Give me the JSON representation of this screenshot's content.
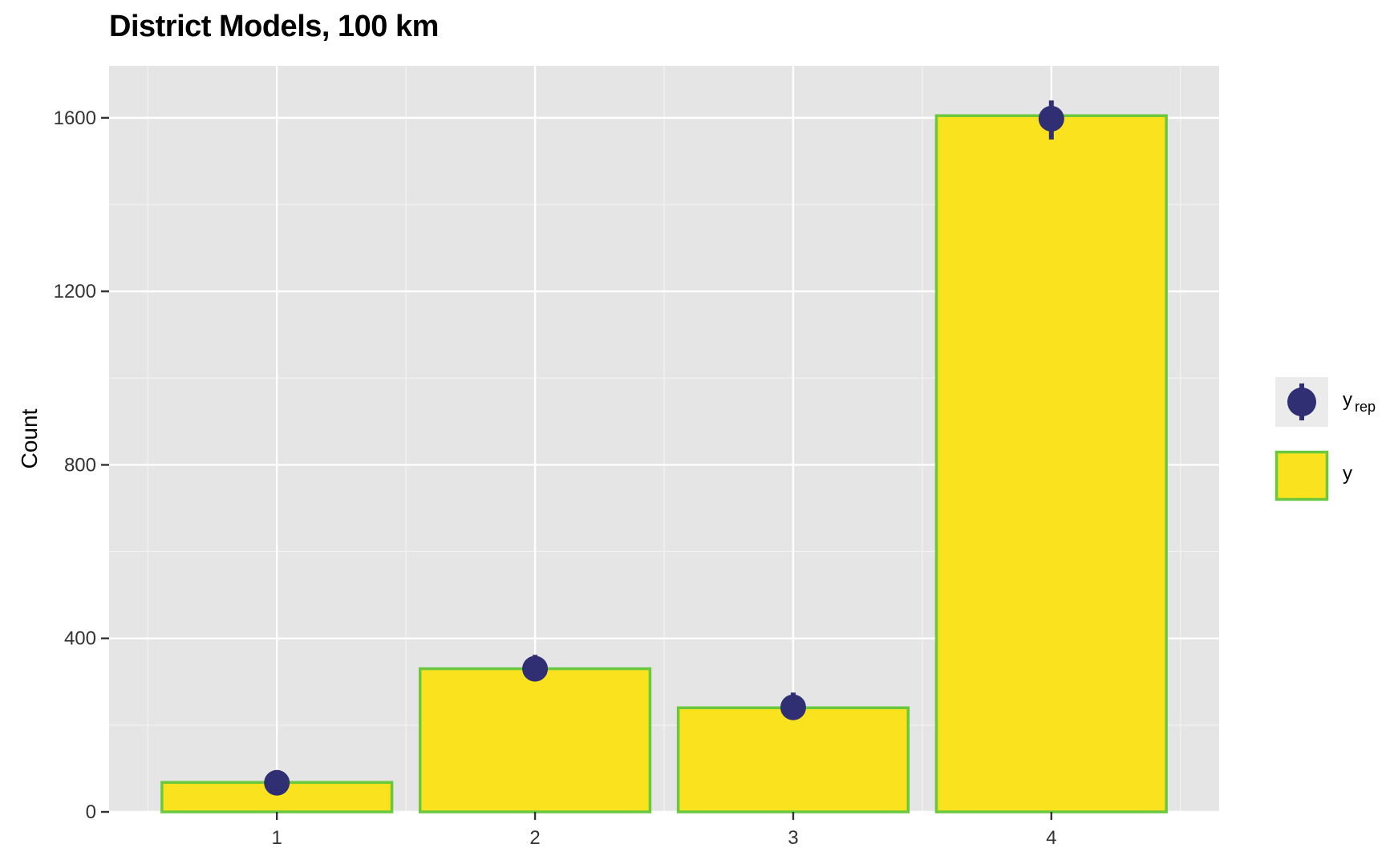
{
  "title": "District Models, 100 km",
  "chart_data": {
    "type": "bar",
    "title": "District Models, 100 km",
    "xlabel": "",
    "ylabel": "Count",
    "categories": [
      "1",
      "2",
      "3",
      "4"
    ],
    "x_tick_labels": [
      "1",
      "2",
      "3",
      "4"
    ],
    "y_ticks": [
      0,
      400,
      800,
      1200,
      1600
    ],
    "y_tick_labels": [
      "0",
      "400",
      "800",
      "1200",
      "1600"
    ],
    "ylim": [
      0,
      1720
    ],
    "xlim": [
      0.35,
      4.65
    ],
    "grid": true,
    "legend_position": "right",
    "series": [
      {
        "name": "y",
        "kind": "bar",
        "values": [
          68,
          330,
          240,
          1605
        ]
      },
      {
        "name": "y_rep",
        "kind": "pointrange",
        "values": [
          67,
          330,
          241,
          1598
        ],
        "lower": [
          60,
          303,
          218,
          1550
        ],
        "upper": [
          74,
          362,
          275,
          1640
        ]
      }
    ],
    "legend": [
      {
        "key": "yrep",
        "label_main": "y",
        "label_sub": "rep"
      },
      {
        "key": "y",
        "label_main": "y"
      }
    ],
    "colors": {
      "panel_background": "#e5e5e5",
      "grid_major": "#ffffff",
      "grid_minor": "#f2f2f2",
      "bar_fill": "#fae31e",
      "bar_outline": "#69c83d",
      "point": "#312f73",
      "legend_key_background": "#ebebeb"
    }
  }
}
